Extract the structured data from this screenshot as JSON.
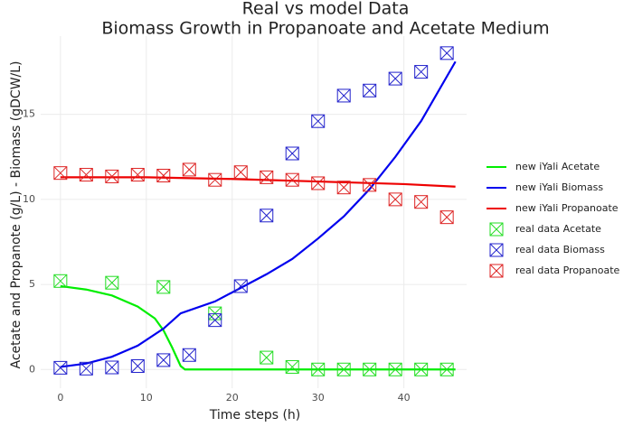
{
  "chart_data": {
    "type": "line",
    "title": "Real vs model Data",
    "subtitle": "Biomass Growth in Propanoate and Acetate Medium",
    "x_label": "Time steps (h)",
    "y_label": "Acetate and Propanote (g/L) - Biomass (gDCW/L)",
    "xlim": [
      -2.3,
      47.3
    ],
    "xticks": [
      0,
      10,
      20,
      30,
      40
    ],
    "ylim": [
      -1.1,
      19.6
    ],
    "yticks": [
      0,
      5,
      10,
      15
    ],
    "grid": true,
    "legend": "right",
    "series": [
      {
        "name": "new iYali Acetate",
        "mode": "lines",
        "color": "#00ee00",
        "x": [
          0,
          3,
          6,
          9,
          11,
          12,
          13,
          14,
          14.5,
          46
        ],
        "values": [
          4.9,
          4.7,
          4.35,
          3.7,
          3.0,
          2.3,
          1.3,
          0.2,
          0,
          0
        ]
      },
      {
        "name": "new iYali Biomass",
        "mode": "lines",
        "color": "#0000ee",
        "x": [
          0,
          3,
          6,
          9,
          12,
          14,
          18,
          21,
          24,
          27,
          30,
          33,
          36,
          39,
          42,
          46
        ],
        "values": [
          0.15,
          0.35,
          0.75,
          1.4,
          2.4,
          3.3,
          4.0,
          4.8,
          5.6,
          6.5,
          7.7,
          9.0,
          10.6,
          12.5,
          14.6,
          18.1
        ]
      },
      {
        "name": "new iYali Propanoate",
        "mode": "lines",
        "color": "#ee0000",
        "x": [
          0,
          10,
          20,
          30,
          40,
          46
        ],
        "values": [
          11.3,
          11.3,
          11.2,
          11.05,
          10.9,
          10.75
        ]
      },
      {
        "name": "real data Acetate",
        "mode": "markers",
        "color": "#22dd22",
        "x": [
          0,
          6,
          12,
          18,
          24,
          27,
          30,
          33,
          36,
          39,
          42,
          45
        ],
        "values": [
          5.2,
          5.1,
          4.85,
          3.3,
          0.7,
          0.15,
          0,
          0,
          0,
          0,
          0,
          0
        ]
      },
      {
        "name": "real data Biomass",
        "mode": "markers",
        "color": "#2222cc",
        "x": [
          0,
          3,
          6,
          9,
          12,
          15,
          18,
          21,
          24,
          27,
          30,
          33,
          36,
          39,
          42,
          45
        ],
        "values": [
          0.1,
          0.05,
          0.12,
          0.2,
          0.55,
          0.85,
          2.9,
          4.9,
          9.05,
          12.7,
          14.6,
          16.1,
          16.4,
          17.1,
          17.5,
          18.6
        ]
      },
      {
        "name": "real data Propanoate",
        "mode": "markers",
        "color": "#dd2222",
        "x": [
          0,
          3,
          6,
          9,
          12,
          15,
          18,
          21,
          24,
          27,
          30,
          33,
          36,
          39,
          42,
          45
        ],
        "values": [
          11.55,
          11.45,
          11.35,
          11.45,
          11.4,
          11.75,
          11.15,
          11.6,
          11.3,
          11.15,
          10.95,
          10.7,
          10.85,
          10.0,
          9.85,
          8.95
        ]
      }
    ]
  }
}
